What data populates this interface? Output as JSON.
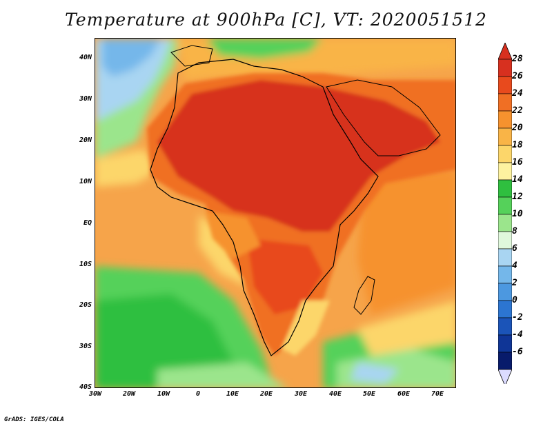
{
  "title": "Temperature at 900hPa [C], VT: 2020051512",
  "credit": "GrADS: IGES/COLA",
  "map": {
    "region": "Africa",
    "lat_ticks": [
      "40N",
      "30N",
      "20N",
      "10N",
      "EQ",
      "10S",
      "20S",
      "30S",
      "40S"
    ],
    "lon_ticks": [
      "30W",
      "20W",
      "10W",
      "0",
      "10E",
      "20E",
      "30E",
      "40E",
      "50E",
      "60E",
      "70E"
    ],
    "lat_range": [
      -40,
      45
    ],
    "lon_range": [
      -30,
      75
    ]
  },
  "colorbar": {
    "labels": [
      "28",
      "26",
      "24",
      "22",
      "20",
      "18",
      "16",
      "14",
      "12",
      "10",
      "8",
      "6",
      "4",
      "2",
      "0",
      "-2",
      "-4",
      "-6"
    ],
    "colors": [
      "#d7301f",
      "#e84a1d",
      "#f06f24",
      "#f6922e",
      "#f9b447",
      "#fcd66a",
      "#fdf2a0",
      "#2fbf3f",
      "#55d15a",
      "#9be58c",
      "#e0f8dc",
      "#a9d5f2",
      "#74b7ea",
      "#4c98e0",
      "#2c75d1",
      "#1b54b8",
      "#0f3596",
      "#081b6b"
    ]
  }
}
